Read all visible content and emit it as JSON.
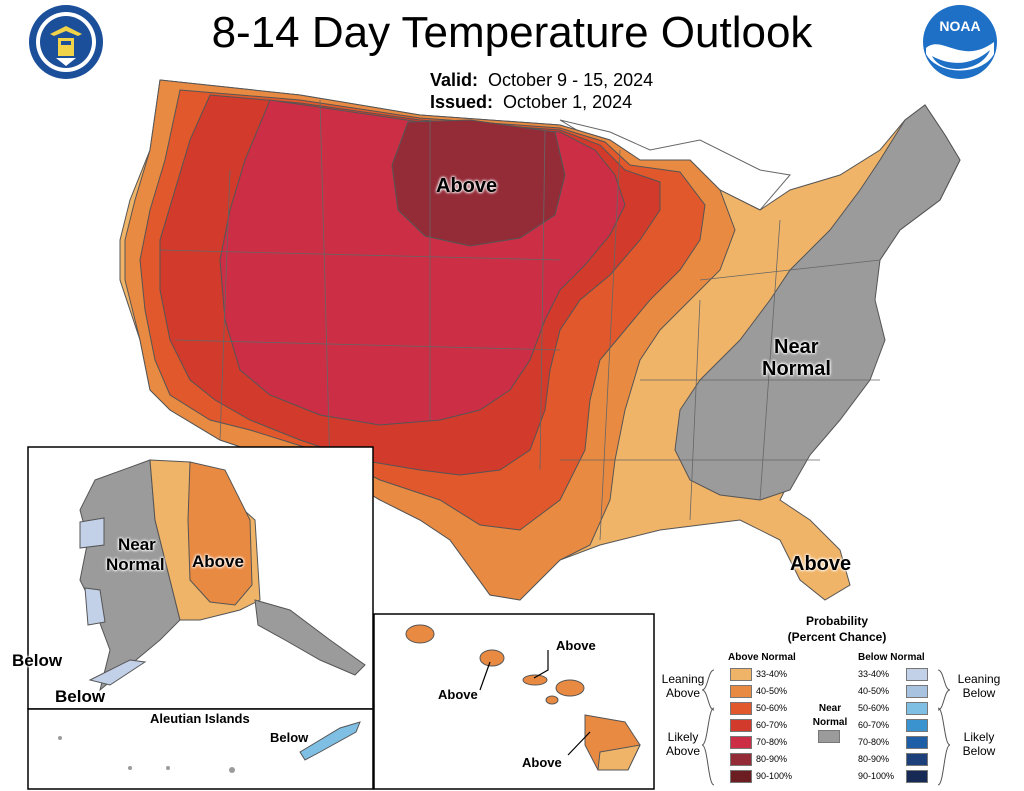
{
  "header": {
    "title": "8-14 Day Temperature Outlook",
    "valid_label": "Valid:",
    "valid_value": "October 9 - 15, 2024",
    "issued_label": "Issued:",
    "issued_value": "October 1, 2024"
  },
  "logos": {
    "left": "department-of-commerce-seal",
    "right": "noaa-logo",
    "noaa_text": "NOAA"
  },
  "map_labels": {
    "conus_above_north": "Above",
    "conus_near_normal_1": "Near",
    "conus_near_normal_2": "Normal",
    "conus_above_florida": "Above",
    "alaska_near_1": "Near",
    "alaska_near_2": "Normal",
    "alaska_above": "Above",
    "alaska_below_1": "Below",
    "alaska_below_2": "Below",
    "aleutian_title": "Aleutian Islands",
    "aleutian_below": "Below",
    "hawaii_above_1": "Above",
    "hawaii_above_2": "Above",
    "hawaii_above_3": "Above"
  },
  "legend": {
    "title_1": "Probability",
    "title_2": "(Percent Chance)",
    "above_header": "Above Normal",
    "below_header": "Below Normal",
    "near_header_1": "Near",
    "near_header_2": "Normal",
    "leaning_above_1": "Leaning",
    "leaning_above_2": "Above",
    "likely_above_1": "Likely",
    "likely_above_2": "Above",
    "leaning_below_1": "Leaning",
    "leaning_below_2": "Below",
    "likely_below_1": "Likely",
    "likely_below_2": "Below",
    "bins": [
      "33-40%",
      "40-50%",
      "50-60%",
      "60-70%",
      "70-80%",
      "80-90%",
      "90-100%"
    ],
    "above_colors": [
      "#f0b468",
      "#e98a42",
      "#e0582b",
      "#d23a2b",
      "#cc2e45",
      "#942c38",
      "#6b1d22"
    ],
    "below_colors": [
      "#c3d1e8",
      "#a8c3e0",
      "#7fbfe4",
      "#3a92cf",
      "#1e5ea6",
      "#1d3f7a",
      "#172a56"
    ],
    "near_color": "#9b9b9b"
  }
}
